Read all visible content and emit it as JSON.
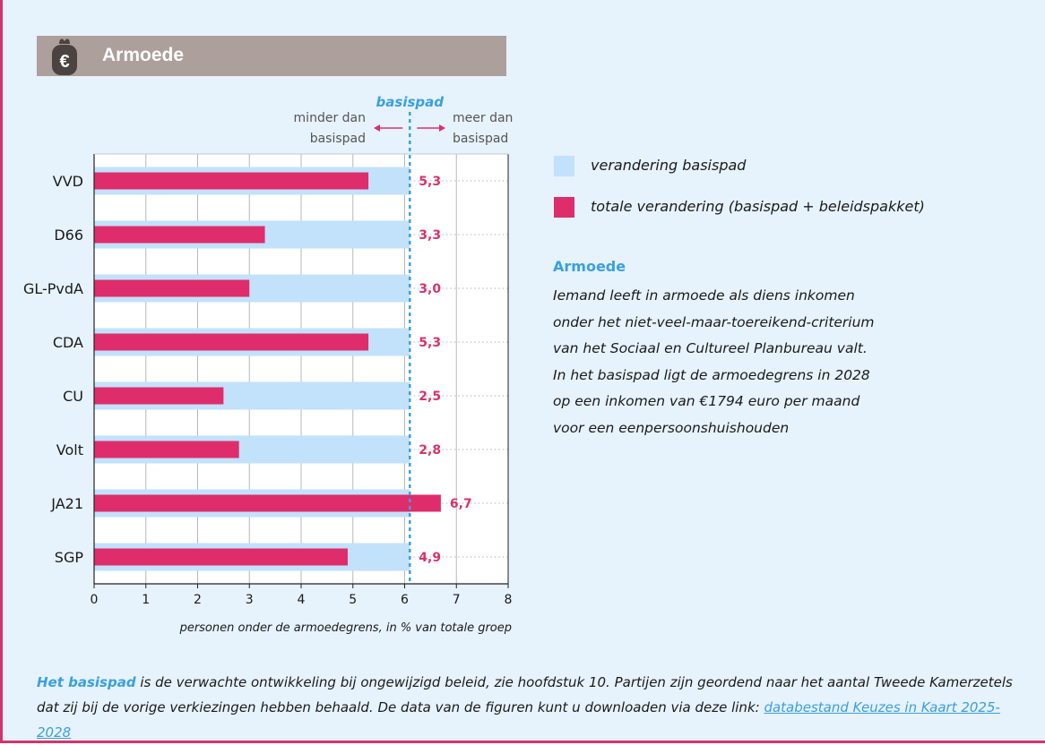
{
  "header": {
    "title": "Armoede",
    "icon": "euro-purse-icon"
  },
  "colors": {
    "basispad": "#c2e1fb",
    "totaal": "#df2d6b",
    "accent_blue": "#3aa0e0",
    "header_bg": "#ad9f9b",
    "value_text": "#d6336c"
  },
  "chart_data": {
    "type": "bar",
    "orientation": "horizontal",
    "categories": [
      "VVD",
      "D66",
      "GL-PvdA",
      "CDA",
      "CU",
      "Volt",
      "JA21",
      "SGP"
    ],
    "series": [
      {
        "name": "verandering basispad",
        "values": [
          6.1,
          6.1,
          6.1,
          6.1,
          6.1,
          6.1,
          6.1,
          6.1
        ]
      },
      {
        "name": "totale verandering (basispad + beleidspakket)",
        "values": [
          5.3,
          3.3,
          3.0,
          5.3,
          2.5,
          2.8,
          6.7,
          4.9
        ]
      }
    ],
    "value_labels": [
      "5,3",
      "3,3",
      "3,0",
      "5,3",
      "2,5",
      "2,8",
      "6,7",
      "4,9"
    ],
    "xlim": [
      0,
      8
    ],
    "x_ticks": [
      "0",
      "1",
      "2",
      "3",
      "4",
      "5",
      "6",
      "7",
      "8"
    ],
    "xlabel": "personen onder de armoedegrens, in % van totale groep",
    "basispad_line": 6.1,
    "basispad_label": "basispad",
    "left_annotation": [
      "minder dan",
      "basispad"
    ],
    "right_annotation": [
      "meer dan",
      "basispad"
    ],
    "grid": true,
    "legend_position": "right"
  },
  "legend": {
    "basispad": "verandering basispad",
    "totaal": "totale verandering (basispad + beleidspakket)"
  },
  "info": {
    "title": "Armoede",
    "lines": [
      "Iemand leeft in armoede als diens inkomen",
      "onder het niet-veel-maar-toereikend-criterium",
      "van het Sociaal en Cultureel Planbureau valt.",
      "In het basispad ligt de armoedegrens in 2028",
      "op een inkomen van €1794 euro per maand",
      "voor een eenpersoonshuishouden"
    ]
  },
  "footer": {
    "lead": "Het basispad",
    "text": " is de verwachte ontwikkeling bij ongewijzigd beleid, zie hoofdstuk 10. Partijen zijn geordend naar het aantal Tweede Kamerzetels dat zij bij de vorige verkiezingen hebben behaald. De data van de figuren kunt u downloaden via deze link: ",
    "link": "databestand Keuzes in Kaart 2025-2028"
  }
}
